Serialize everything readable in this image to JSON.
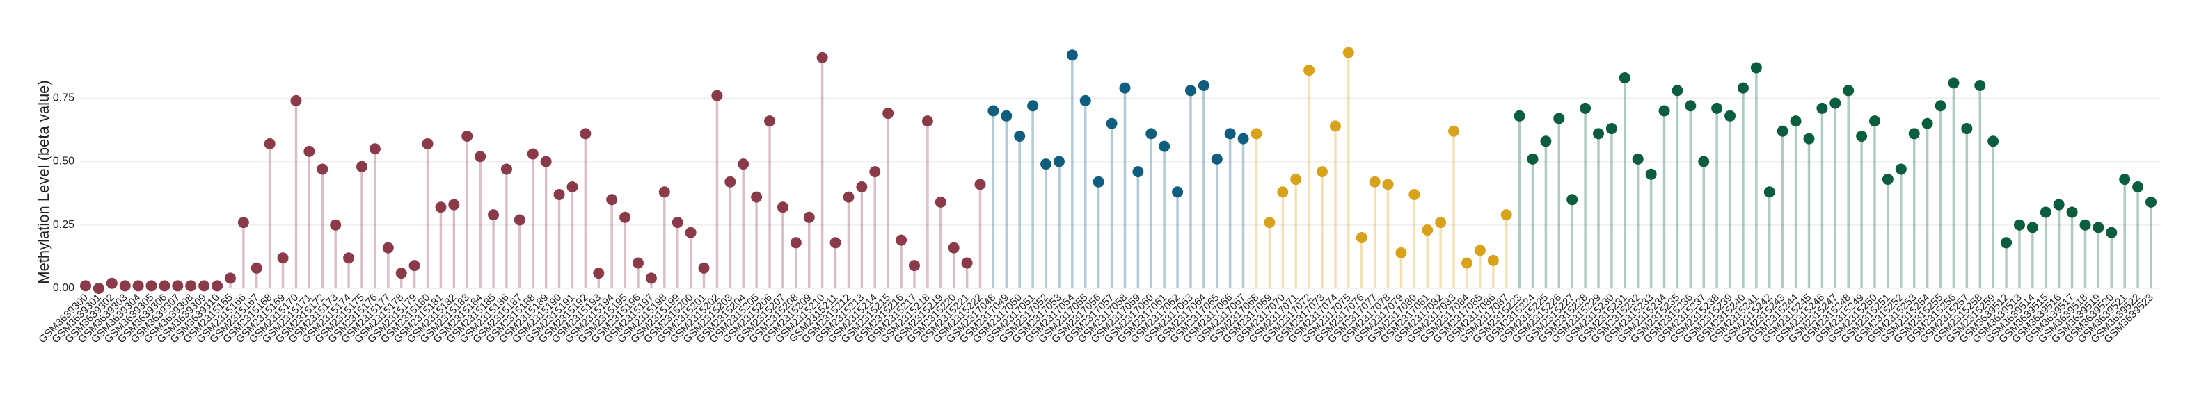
{
  "chart_data": {
    "type": "lollipop",
    "y_label": "Methylation Level (beta value)",
    "ylim": [
      0,
      1
    ],
    "yticks": [
      {
        "value": 0,
        "label": "0.00"
      },
      {
        "value": 0.25,
        "label": "0.25"
      },
      {
        "value": 0.5,
        "label": "0.50"
      },
      {
        "value": 0.75,
        "label": "0.75"
      }
    ],
    "grid": true,
    "series": [
      {
        "color": "#8b3a4a",
        "categories": [
          "GSM3639300",
          "GSM3639301",
          "GSM3639302",
          "GSM3639303",
          "GSM3639304",
          "GSM3639305",
          "GSM3639306",
          "GSM3639307",
          "GSM3639308",
          "GSM3639309",
          "GSM3639310",
          "GSM2315165",
          "GSM2315166",
          "GSM2315167",
          "GSM2315168",
          "GSM2315169",
          "GSM2315170",
          "GSM2315171",
          "GSM2315172",
          "GSM2315173",
          "GSM2315174",
          "GSM2315175",
          "GSM2315176",
          "GSM2315177",
          "GSM2315178",
          "GSM2315179",
          "GSM2315180",
          "GSM2315181",
          "GSM2315182",
          "GSM2315183",
          "GSM2315184",
          "GSM2315185",
          "GSM2315186",
          "GSM2315187",
          "GSM2315188",
          "GSM2315189",
          "GSM2315190",
          "GSM2315191",
          "GSM2315192",
          "GSM2315193",
          "GSM2315194",
          "GSM2315195",
          "GSM2315196",
          "GSM2315197",
          "GSM2315198",
          "GSM2315199",
          "GSM2315200",
          "GSM2315201",
          "GSM2315202",
          "GSM2315203",
          "GSM2315204",
          "GSM2315205",
          "GSM2315206",
          "GSM2315207",
          "GSM2315208",
          "GSM2315209",
          "GSM2315210",
          "GSM2315211",
          "GSM2315212",
          "GSM2315213",
          "GSM2315214",
          "GSM2315215",
          "GSM2315216",
          "GSM2315217",
          "GSM2315218",
          "GSM2315219",
          "GSM2315220",
          "GSM2315221",
          "GSM2315222"
        ],
        "values": [
          0.01,
          0.0,
          0.02,
          0.01,
          0.01,
          0.01,
          0.01,
          0.01,
          0.01,
          0.01,
          0.01,
          0.04,
          0.26,
          0.08,
          0.57,
          0.12,
          0.74,
          0.54,
          0.47,
          0.25,
          0.12,
          0.48,
          0.55,
          0.16,
          0.06,
          0.09,
          0.57,
          0.32,
          0.33,
          0.6,
          0.52,
          0.29,
          0.47,
          0.27,
          0.53,
          0.5,
          0.37,
          0.4,
          0.61,
          0.06,
          0.35,
          0.28,
          0.1,
          0.04,
          0.38,
          0.26,
          0.22,
          0.08,
          0.76,
          0.42,
          0.49,
          0.36,
          0.66,
          0.32,
          0.18,
          0.28,
          0.91,
          0.18,
          0.36,
          0.4,
          0.46,
          0.69,
          0.19,
          0.09,
          0.66,
          0.34,
          0.16,
          0.1,
          0.41
        ]
      },
      {
        "color": "#0f5e80",
        "categories": [
          "GSM2317048",
          "GSM2317049",
          "GSM2317050",
          "GSM2317051",
          "GSM2317052",
          "GSM2317053",
          "GSM2317054",
          "GSM2317055",
          "GSM2317056",
          "GSM2317057",
          "GSM2317058",
          "GSM2317059",
          "GSM2317060",
          "GSM2317061",
          "GSM2317062",
          "GSM2317063",
          "GSM2317064",
          "GSM2317065",
          "GSM2317066",
          "GSM2317067"
        ],
        "values": [
          0.7,
          0.68,
          0.6,
          0.72,
          0.49,
          0.5,
          0.92,
          0.74,
          0.42,
          0.65,
          0.79,
          0.46,
          0.61,
          0.56,
          0.38,
          0.78,
          0.8,
          0.51,
          0.61,
          0.59
        ]
      },
      {
        "color": "#d9a21b",
        "categories": [
          "GSM2317068",
          "GSM2317069",
          "GSM2317070",
          "GSM2317071",
          "GSM2317072",
          "GSM2317073",
          "GSM2317074",
          "GSM2317075",
          "GSM2317076",
          "GSM2317077",
          "GSM2317078",
          "GSM2317079",
          "GSM2317080",
          "GSM2317081",
          "GSM2317082",
          "GSM2317083",
          "GSM2317084",
          "GSM2317085",
          "GSM2317086",
          "GSM2317087"
        ],
        "values": [
          0.61,
          0.26,
          0.38,
          0.43,
          0.86,
          0.46,
          0.64,
          0.93,
          0.2,
          0.42,
          0.41,
          0.14,
          0.37,
          0.23,
          0.26,
          0.62,
          0.1,
          0.15,
          0.11,
          0.29
        ]
      },
      {
        "color": "#0a5e3e",
        "categories": [
          "GSM2315223",
          "GSM2315224",
          "GSM2315225",
          "GSM2315226",
          "GSM2315227",
          "GSM2315228",
          "GSM2315229",
          "GSM2315230",
          "GSM2315231",
          "GSM2315232",
          "GSM2315233",
          "GSM2315234",
          "GSM2315235",
          "GSM2315236",
          "GSM2315237",
          "GSM2315238",
          "GSM2315239",
          "GSM2315240",
          "GSM2315241",
          "GSM2315242",
          "GSM2315243",
          "GSM2315244",
          "GSM2315245",
          "GSM2315246",
          "GSM2315247",
          "GSM2315248",
          "GSM2315249",
          "GSM2315250",
          "GSM2315251",
          "GSM2315252",
          "GSM2315253",
          "GSM2315254",
          "GSM2315255",
          "GSM2315256",
          "GSM2315257",
          "GSM2315258",
          "GSM2315259",
          "GSM3639512",
          "GSM3639513",
          "GSM3639514",
          "GSM3639515",
          "GSM3639516",
          "GSM3639517",
          "GSM3639518",
          "GSM3639519",
          "GSM3639520",
          "GSM3639521",
          "GSM3639522",
          "GSM3639523"
        ],
        "values": [
          0.68,
          0.51,
          0.58,
          0.67,
          0.35,
          0.71,
          0.61,
          0.63,
          0.83,
          0.51,
          0.45,
          0.7,
          0.78,
          0.72,
          0.5,
          0.71,
          0.68,
          0.79,
          0.87,
          0.38,
          0.62,
          0.66,
          0.59,
          0.71,
          0.73,
          0.78,
          0.6,
          0.66,
          0.43,
          0.47,
          0.61,
          0.65,
          0.72,
          0.81,
          0.63,
          0.8,
          0.58,
          0.18,
          0.25,
          0.24,
          0.3,
          0.33,
          0.3,
          0.25,
          0.24,
          0.22,
          0.43,
          0.4,
          0.34
        ]
      }
    ]
  }
}
